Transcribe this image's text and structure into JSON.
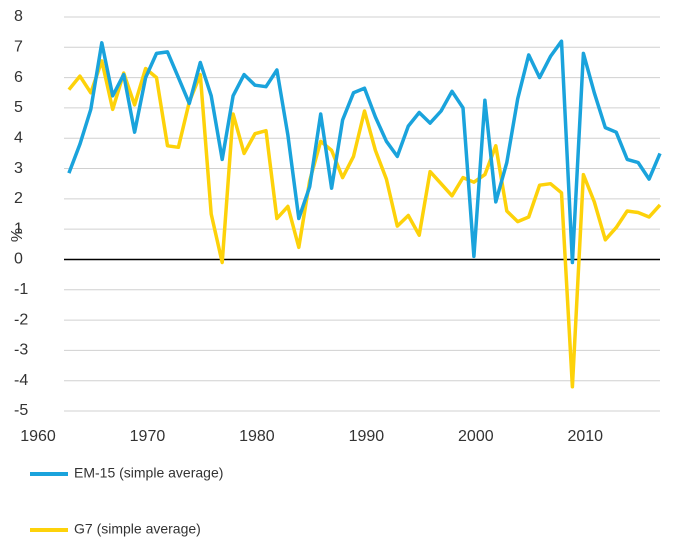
{
  "chart_data": {
    "type": "line",
    "y_label": "%",
    "x": [
      1961,
      1962,
      1963,
      1964,
      1965,
      1966,
      1967,
      1968,
      1969,
      1970,
      1971,
      1972,
      1973,
      1974,
      1975,
      1976,
      1977,
      1978,
      1979,
      1980,
      1981,
      1982,
      1983,
      1984,
      1985,
      1986,
      1987,
      1988,
      1989,
      1990,
      1991,
      1992,
      1993,
      1994,
      1995,
      1996,
      1997,
      1998,
      1999,
      2000,
      2001,
      2002,
      2003,
      2004,
      2005,
      2006,
      2007,
      2008,
      2009,
      2010,
      2011,
      2012,
      2013,
      2014,
      2015
    ],
    "series": [
      {
        "name": "EM-15 (simple average)",
        "color": "#1aa3dc",
        "values": [
          2.85,
          3.8,
          4.95,
          7.15,
          5.4,
          6.1,
          4.2,
          6.0,
          6.8,
          6.85,
          6.0,
          5.15,
          6.5,
          5.4,
          3.3,
          5.4,
          6.1,
          5.75,
          5.7,
          6.25,
          4.1,
          1.35,
          2.4,
          4.8,
          2.35,
          4.6,
          5.5,
          5.65,
          4.7,
          3.9,
          3.4,
          4.4,
          4.85,
          4.5,
          4.9,
          5.55,
          5.0,
          0.1,
          5.25,
          1.9,
          3.2,
          5.3,
          6.75,
          6.0,
          6.7,
          7.2,
          -0.1,
          6.8,
          5.5,
          4.35,
          4.2,
          3.3,
          3.2,
          2.65,
          3.5
        ]
      },
      {
        "name": "G7 (simple average)",
        "color": "#fdd20a",
        "values": [
          5.6,
          6.05,
          5.5,
          6.55,
          4.95,
          6.15,
          5.1,
          6.3,
          6.0,
          3.75,
          3.7,
          5.2,
          6.1,
          1.5,
          -0.1,
          4.8,
          3.5,
          4.15,
          4.25,
          1.35,
          1.75,
          0.4,
          2.6,
          3.9,
          3.6,
          2.7,
          3.4,
          4.9,
          3.6,
          2.65,
          1.1,
          1.45,
          0.8,
          2.9,
          2.5,
          2.1,
          2.7,
          2.55,
          2.8,
          3.75,
          1.6,
          1.25,
          1.4,
          2.45,
          2.5,
          2.2,
          -4.2,
          2.8,
          1.9,
          0.65,
          1.05,
          1.6,
          1.55,
          1.4,
          1.8
        ]
      }
    ],
    "xlim": [
      1960,
      2015
    ],
    "xticks": [
      1960,
      1970,
      1980,
      1990,
      2000,
      2010
    ],
    "ylim": [
      -5,
      8
    ],
    "yticks": [
      -5,
      -4,
      -3,
      -2,
      -1,
      0,
      1,
      2,
      3,
      4,
      5,
      6,
      7,
      8
    ],
    "grid": true
  }
}
